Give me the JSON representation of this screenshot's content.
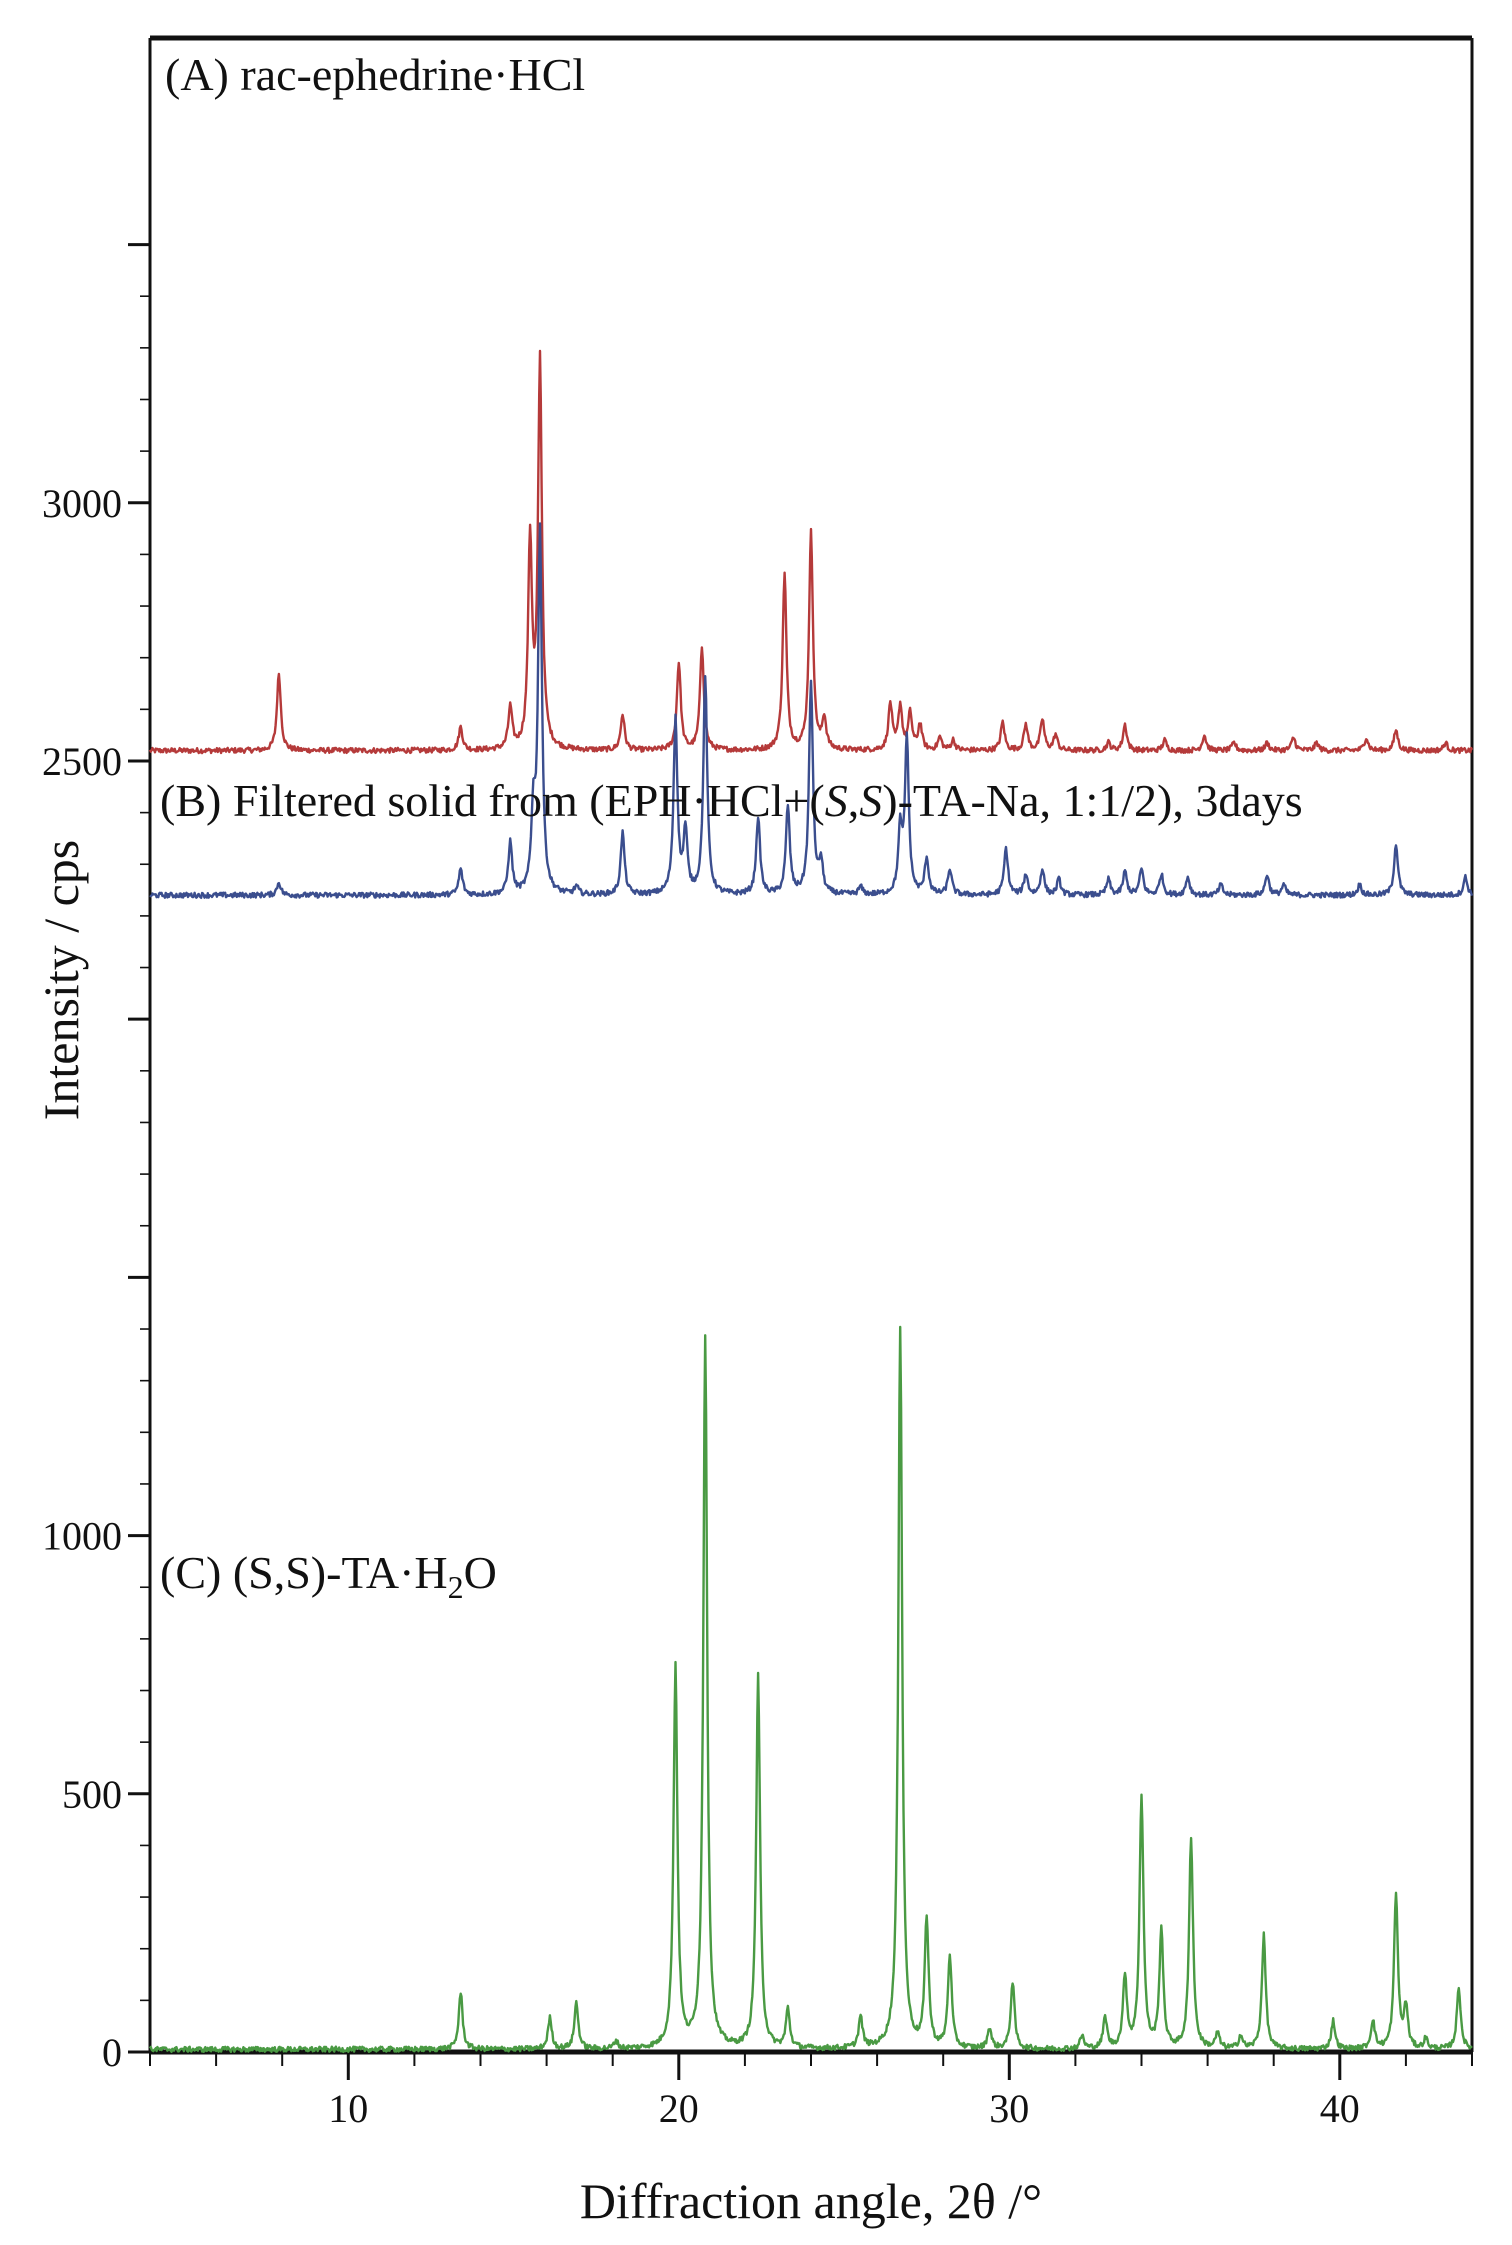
{
  "chart_data": {
    "type": "line",
    "xlabel": "Diffraction angle, 2θ /°",
    "ylabel": "Intensity / cps",
    "xlim": [
      4,
      44
    ],
    "ylim": [
      0,
      3900
    ],
    "grid": false,
    "legend": "none",
    "x_ticks": [
      10,
      20,
      30,
      40
    ],
    "y_ticks": [
      0,
      500,
      1000,
      2500,
      3000
    ],
    "x_tick_labels": [
      "10",
      "20",
      "30",
      "40"
    ],
    "y_tick_labels": [
      "0",
      "500",
      "1000",
      "2500",
      "3000"
    ],
    "annotations": [
      {
        "text": "(A) rac-ephedrine·HCl",
        "series": "A"
      },
      {
        "text_parts": [
          "(B) Filtered solid from (EPH·HCl+(",
          "S",
          ",",
          "S",
          ")-TA-Na, 1:1/2), 3days"
        ],
        "series": "B"
      },
      {
        "text_parts": [
          "(C) (S,S)-TA·H",
          "2",
          "O"
        ],
        "series": "C"
      }
    ],
    "series": [
      {
        "id": "A",
        "color": "#b53a3a",
        "baseline": 2520,
        "peaks": [
          [
            7.9,
            150
          ],
          [
            13.4,
            45
          ],
          [
            14.9,
            80
          ],
          [
            15.5,
            400
          ],
          [
            15.8,
            750
          ],
          [
            18.3,
            70
          ],
          [
            20.0,
            170
          ],
          [
            20.7,
            200
          ],
          [
            23.2,
            340
          ],
          [
            24.0,
            420
          ],
          [
            24.4,
            60
          ],
          [
            26.4,
            90
          ],
          [
            26.7,
            85
          ],
          [
            27.0,
            70
          ],
          [
            27.3,
            50
          ],
          [
            27.9,
            25
          ],
          [
            28.3,
            20
          ],
          [
            29.8,
            55
          ],
          [
            30.5,
            50
          ],
          [
            31.0,
            60
          ],
          [
            31.4,
            30
          ],
          [
            33.0,
            15
          ],
          [
            33.5,
            50
          ],
          [
            34.7,
            20
          ],
          [
            35.9,
            30
          ],
          [
            36.8,
            15
          ],
          [
            37.8,
            15
          ],
          [
            38.6,
            25
          ],
          [
            39.3,
            15
          ],
          [
            40.8,
            25
          ],
          [
            41.7,
            40
          ],
          [
            43.2,
            15
          ]
        ]
      },
      {
        "id": "B",
        "color": "#3b4e8e",
        "baseline": 2240,
        "peaks": [
          [
            7.9,
            25
          ],
          [
            13.4,
            50
          ],
          [
            14.9,
            100
          ],
          [
            15.6,
            150
          ],
          [
            15.8,
            700
          ],
          [
            16.9,
            15
          ],
          [
            18.3,
            120
          ],
          [
            19.9,
            340
          ],
          [
            20.2,
            120
          ],
          [
            20.8,
            420
          ],
          [
            22.4,
            150
          ],
          [
            23.3,
            170
          ],
          [
            24.0,
            410
          ],
          [
            24.3,
            60
          ],
          [
            25.5,
            15
          ],
          [
            26.7,
            120
          ],
          [
            26.9,
            300
          ],
          [
            27.5,
            70
          ],
          [
            28.2,
            50
          ],
          [
            29.9,
            90
          ],
          [
            30.5,
            40
          ],
          [
            31.0,
            50
          ],
          [
            31.5,
            30
          ],
          [
            33.0,
            30
          ],
          [
            33.5,
            45
          ],
          [
            34.0,
            50
          ],
          [
            34.6,
            40
          ],
          [
            35.4,
            35
          ],
          [
            36.4,
            20
          ],
          [
            37.8,
            40
          ],
          [
            38.3,
            20
          ],
          [
            40.6,
            20
          ],
          [
            41.7,
            100
          ],
          [
            43.8,
            35
          ]
        ]
      },
      {
        "id": "C",
        "color": "#4a9a43",
        "baseline": 5,
        "peaks": [
          [
            13.4,
            110
          ],
          [
            16.1,
            60
          ],
          [
            16.9,
            90
          ],
          [
            18.1,
            15
          ],
          [
            19.9,
            740
          ],
          [
            20.8,
            1380
          ],
          [
            22.4,
            720
          ],
          [
            23.3,
            75
          ],
          [
            25.5,
            60
          ],
          [
            26.7,
            1400
          ],
          [
            27.5,
            250
          ],
          [
            28.2,
            180
          ],
          [
            29.4,
            40
          ],
          [
            30.1,
            130
          ],
          [
            32.2,
            25
          ],
          [
            32.9,
            60
          ],
          [
            33.5,
            140
          ],
          [
            34.0,
            490
          ],
          [
            34.6,
            230
          ],
          [
            35.5,
            410
          ],
          [
            36.3,
            30
          ],
          [
            37.0,
            25
          ],
          [
            37.7,
            220
          ],
          [
            39.8,
            55
          ],
          [
            41.0,
            55
          ],
          [
            41.7,
            300
          ],
          [
            42.0,
            80
          ],
          [
            42.6,
            20
          ],
          [
            43.6,
            120
          ]
        ]
      }
    ]
  }
}
